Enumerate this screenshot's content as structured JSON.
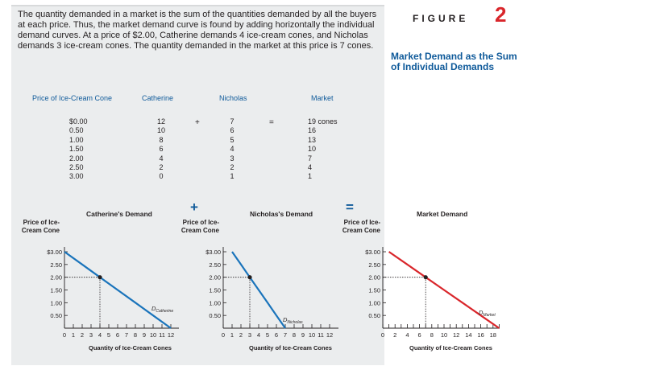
{
  "intro_text": "The quantity demanded in a market is the sum of the quantities demanded by all the buyers at each price. Thus, the market demand curve is found by adding horizontally the individual demand curves. At a price of $2.00, Catherine demands 4 ice-cream cones, and Nicholas demands 3 ice-cream cones. The quantity demanded in the market at this price is 7 cones.",
  "figure": {
    "label": "FIGURE",
    "number": "2",
    "title": "Market Demand as the Sum of Individual Demands"
  },
  "table": {
    "headers": {
      "price": "Price of Ice-Cream Cone",
      "catherine": "Catherine",
      "nicholas": "Nicholas",
      "market": "Market"
    },
    "plus": "+",
    "equals": "=",
    "prices": [
      "$0.00",
      "0.50",
      "1.00",
      "1.50",
      "2.00",
      "2.50",
      "3.00"
    ],
    "catherine": [
      "12",
      "10",
      "8",
      "6",
      "4",
      "2",
      "0"
    ],
    "nicholas": [
      "7",
      "6",
      "5",
      "4",
      "3",
      "2",
      "1"
    ],
    "market": [
      "19 cones",
      "16",
      "13",
      "10",
      "7",
      "4",
      "1"
    ]
  },
  "graphs": {
    "plus": "+",
    "equals": "=",
    "ylabel": "Price of Ice-Cream Cone",
    "xlabel": "Quantity of Ice-Cream Cones",
    "yticks": [
      "$3.00",
      "2.50",
      "2.00",
      "1.50",
      "1.00",
      "0.50"
    ],
    "curve_label_prefix": "D",
    "catherine": {
      "title": "Catherine's Demand",
      "curve_sub": "Catherine",
      "xticks": [
        "0",
        "1",
        "2",
        "3",
        "4",
        "5",
        "6",
        "7",
        "8",
        "9",
        "10",
        "11",
        "12"
      ]
    },
    "nicholas": {
      "title": "Nicholas's Demand",
      "curve_sub": "Nicholas",
      "xticks": [
        "0",
        "1",
        "2",
        "3",
        "4",
        "5",
        "6",
        "7",
        "8",
        "9",
        "10",
        "11",
        "12"
      ]
    },
    "market": {
      "title": "Market Demand",
      "curve_sub": "Market",
      "xticks": [
        "0",
        "2",
        "4",
        "6",
        "8",
        "10",
        "12",
        "14",
        "16",
        "18"
      ]
    }
  },
  "chart_data": [
    {
      "type": "line",
      "title": "Catherine's Demand",
      "xlabel": "Quantity of Ice-Cream Cones",
      "ylabel": "Price of Ice-Cream Cone",
      "xlim": [
        0,
        12.5
      ],
      "ylim": [
        0,
        3.0
      ],
      "series": [
        {
          "name": "DCatherine",
          "x": [
            0,
            2,
            4,
            6,
            8,
            10,
            12
          ],
          "y": [
            3.0,
            2.5,
            2.0,
            1.5,
            1.0,
            0.5,
            0.0
          ],
          "color": "#1a74bb"
        }
      ],
      "highlight": {
        "x": 4,
        "y": 2.0
      }
    },
    {
      "type": "line",
      "title": "Nicholas's Demand",
      "xlabel": "Quantity of Ice-Cream Cones",
      "ylabel": "Price of Ice-Cream Cone",
      "xlim": [
        0,
        12.5
      ],
      "ylim": [
        0,
        3.0
      ],
      "series": [
        {
          "name": "DNicholas",
          "x": [
            0,
            1,
            2,
            3,
            4,
            5,
            6,
            7
          ],
          "y": [
            3.5,
            3.0,
            2.5,
            2.0,
            1.5,
            1.0,
            0.5,
            0.0
          ],
          "color": "#1a74bb"
        }
      ],
      "highlight": {
        "x": 3,
        "y": 2.0
      }
    },
    {
      "type": "line",
      "title": "Market Demand",
      "xlabel": "Quantity of Ice-Cream Cones",
      "ylabel": "Price of Ice-Cream Cone",
      "xlim": [
        0,
        19
      ],
      "ylim": [
        0,
        3.0
      ],
      "series": [
        {
          "name": "DMarket",
          "x": [
            1,
            4,
            7,
            10,
            13,
            16,
            19
          ],
          "y": [
            3.0,
            2.5,
            2.0,
            1.5,
            1.0,
            0.5,
            0.0
          ],
          "color": "#d9262b"
        }
      ],
      "highlight": {
        "x": 7,
        "y": 2.0
      }
    }
  ]
}
